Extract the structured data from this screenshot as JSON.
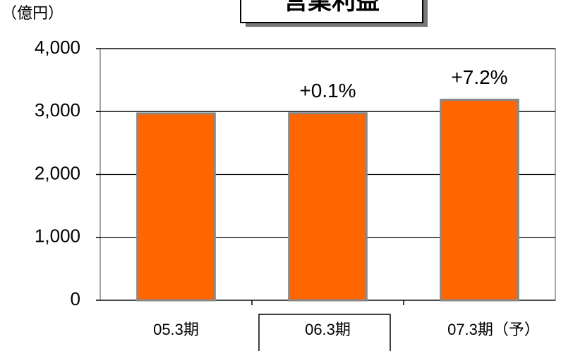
{
  "chart_data": {
    "type": "bar",
    "title": "営業利益",
    "y_axis_label": "（億円）",
    "categories": [
      "05.3期",
      "06.3期",
      "07.3期（予）"
    ],
    "values": [
      2970,
      2973,
      3187
    ],
    "color": "#ff6600",
    "annotations": [
      "+0.1%",
      "+7.2%"
    ],
    "ylim": [
      0,
      4000
    ],
    "yticks": [
      0,
      {
        "value": 1000,
        "label": "1,000"
      },
      {
        "value": 2000,
        "label": "2,000"
      },
      {
        "value": 3000,
        "label": "3,000"
      },
      {
        "value": 4000,
        "label": "4,000"
      }
    ],
    "grid": true
  }
}
